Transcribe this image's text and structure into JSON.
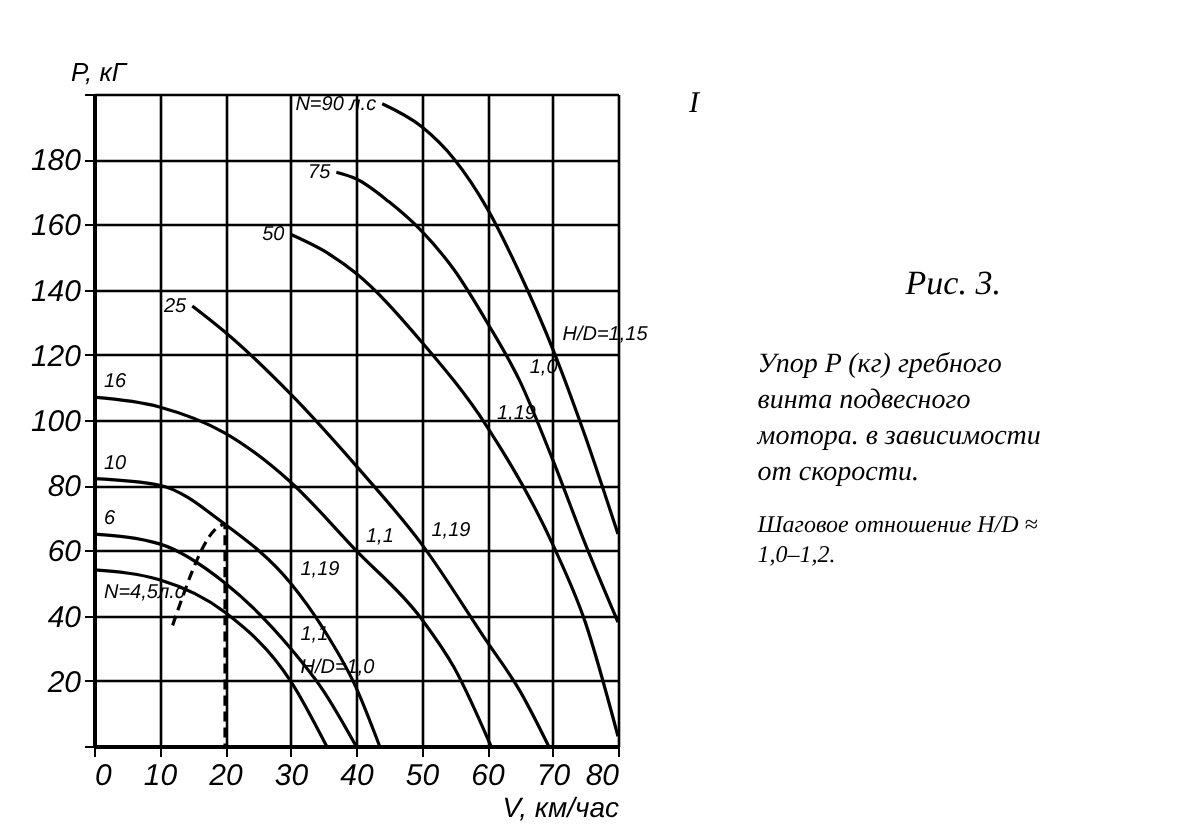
{
  "chart_data": {
    "type": "line",
    "title": "Рис. 3.",
    "subtitle": "Упор P (кг) гребного винта подвесного мотора. в зависимости от скорости.",
    "xlabel": "V, км/час",
    "ylabel": "P, кГ",
    "xlim": [
      0,
      80
    ],
    "ylim": [
      0,
      200
    ],
    "xticks": [
      0,
      10,
      20,
      30,
      40,
      50,
      60,
      70,
      80
    ],
    "yticks": [
      {
        "value": 0,
        "label": null
      },
      20,
      40,
      60,
      80,
      100,
      120,
      140,
      160,
      180,
      {
        "value": 200,
        "label": null
      }
    ],
    "grid": true,
    "marker": "none",
    "line_style": "solid",
    "series": [
      {
        "name": "N=90 л.с",
        "color": "#000000",
        "x": [
          44,
          50,
          55,
          60,
          65,
          70,
          75,
          80
        ],
        "values": [
          197,
          190,
          180,
          165,
          145,
          122,
          95,
          65
        ]
      },
      {
        "name": "75",
        "color": "#000000",
        "x": [
          37,
          40,
          45,
          50,
          55,
          60,
          65,
          70,
          75,
          80
        ],
        "values": [
          176,
          174,
          167,
          158,
          146,
          130,
          112,
          88,
          62,
          38
        ]
      },
      {
        "name": "50",
        "color": "#000000",
        "x": [
          30,
          35,
          40,
          50,
          60,
          70,
          75,
          80
        ],
        "values": [
          157,
          152,
          145,
          124,
          98,
          62,
          38,
          3
        ]
      },
      {
        "name": "25",
        "color": "#000000",
        "x": [
          15,
          20,
          30,
          40,
          50,
          60,
          65,
          69.4
        ],
        "values": [
          135,
          127,
          108,
          86,
          62,
          32,
          17,
          0
        ]
      },
      {
        "name": "16",
        "color": "#000000",
        "x": [
          0,
          10,
          20,
          30,
          40,
          50,
          55,
          60.6
        ],
        "values": [
          107,
          104,
          96,
          81,
          60,
          39,
          24,
          0
        ]
      },
      {
        "name": "10",
        "color": "#000000",
        "x": [
          0,
          10,
          20,
          30,
          35,
          40,
          43.6
        ],
        "values": [
          82,
          80,
          68,
          50,
          36,
          18,
          0
        ]
      },
      {
        "name": "6",
        "color": "#000000",
        "x": [
          0,
          10,
          20,
          30,
          35,
          40
        ],
        "values": [
          65,
          62,
          50,
          30,
          17,
          0
        ]
      },
      {
        "name": "N=4,5л.с",
        "color": "#000000",
        "x": [
          0,
          10,
          20,
          30,
          35.5
        ],
        "values": [
          54,
          51,
          41,
          20,
          0
        ]
      },
      {
        "color": "#000000",
        "line_style": "dashed",
        "x": [
          12,
          20,
          20
        ],
        "values": [
          37,
          68,
          0
        ]
      }
    ],
    "annotations": [
      {
        "text": "H/D=1,15",
        "x": 70,
        "y": 122
      },
      {
        "text": "1,0",
        "x": 65,
        "y": 112
      },
      {
        "text": "1,19",
        "x": 60,
        "y": 98
      },
      {
        "text": "1,19",
        "x": 50,
        "y": 62
      },
      {
        "text": "1,1",
        "x": 40,
        "y": 60
      },
      {
        "text": "1,19",
        "x": 30,
        "y": 50
      },
      {
        "text": "1,1",
        "x": 30,
        "y": 30
      },
      {
        "text": "H/D=1,0",
        "x": 30,
        "y": 20
      },
      "Шаговое отношение H/D ≈ 1,0–1,2.",
      "I"
    ]
  }
}
